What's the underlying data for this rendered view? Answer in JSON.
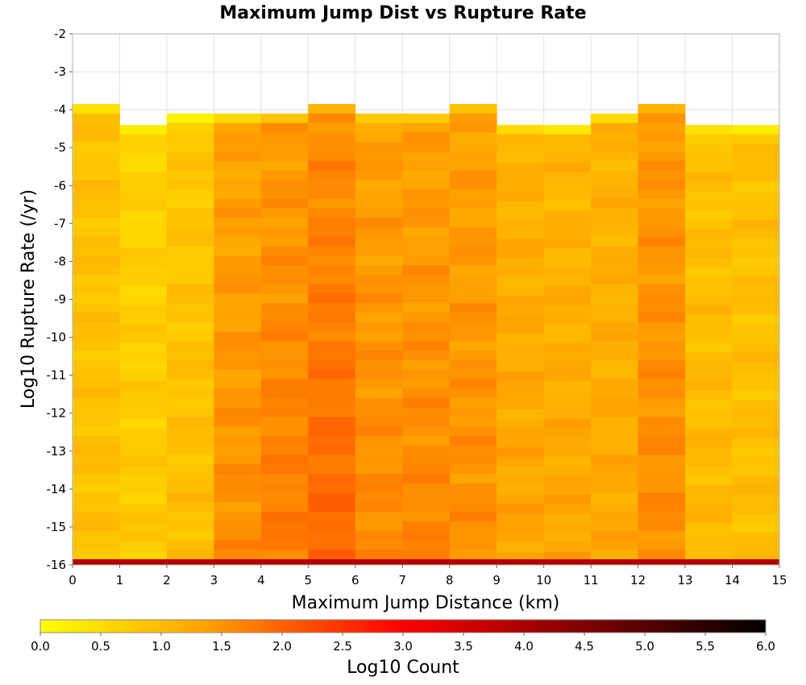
{
  "chart_data": {
    "type": "heatmap",
    "title": "Maximum Jump Dist vs Rupture Rate",
    "xlabel": "Maximum Jump Distance (km)",
    "ylabel": "Log10 Rupture Rate (/yr)",
    "xlim": [
      0,
      15
    ],
    "ylim": [
      -16,
      -2
    ],
    "x_ticks": [
      "0",
      "1",
      "2",
      "3",
      "4",
      "5",
      "6",
      "7",
      "8",
      "9",
      "10",
      "11",
      "12",
      "13",
      "14",
      "15"
    ],
    "y_ticks": [
      "-2",
      "-3",
      "-4",
      "-5",
      "-6",
      "-7",
      "-8",
      "-9",
      "-10",
      "-11",
      "-12",
      "-13",
      "-14",
      "-15",
      "-16"
    ],
    "x_bin_width": 1,
    "y_bin_height": 0.25,
    "grid": true,
    "colorbar": {
      "label": "Log10 Count",
      "range": [
        0,
        6
      ],
      "ticks": [
        "0.0",
        "0.5",
        "1.0",
        "1.5",
        "2.0",
        "2.5",
        "3.0",
        "3.5",
        "4.0",
        "4.5",
        "5.0",
        "5.5",
        "6.0"
      ],
      "colors": [
        "#ffff00",
        "#ffa500",
        "#ff0000",
        "#000000"
      ],
      "color_positions": [
        0,
        0.22,
        0.5,
        1.0
      ]
    },
    "columns": [
      {
        "x_bin": "0-1",
        "top": -3.85,
        "base": 0.9,
        "slope": 0.0
      },
      {
        "x_bin": "1-2",
        "top": -4.4,
        "base": 0.65,
        "slope": 0.012
      },
      {
        "x_bin": "2-3",
        "top": -4.1,
        "base": 0.8,
        "slope": 0.014
      },
      {
        "x_bin": "3-4",
        "top": -4.1,
        "base": 1.3,
        "slope": 0.022
      },
      {
        "x_bin": "4-5",
        "top": -4.1,
        "base": 1.4,
        "slope": 0.03
      },
      {
        "x_bin": "5-6",
        "top": -3.85,
        "base": 1.55,
        "slope": 0.035
      },
      {
        "x_bin": "6-7",
        "top": -4.1,
        "base": 1.35,
        "slope": 0.022
      },
      {
        "x_bin": "7-8",
        "top": -4.1,
        "base": 1.35,
        "slope": 0.025
      },
      {
        "x_bin": "8-9",
        "top": -3.85,
        "base": 1.35,
        "slope": 0.018
      },
      {
        "x_bin": "9-10",
        "top": -4.4,
        "base": 1.1,
        "slope": 0.02
      },
      {
        "x_bin": "10-11",
        "top": -4.4,
        "base": 1.05,
        "slope": 0.022
      },
      {
        "x_bin": "11-12",
        "top": -4.1,
        "base": 1.1,
        "slope": 0.015
      },
      {
        "x_bin": "12-13",
        "top": -3.85,
        "base": 1.45,
        "slope": 0.01
      },
      {
        "x_bin": "13-14",
        "top": -4.4,
        "base": 0.9,
        "slope": 0.012
      },
      {
        "x_bin": "14-15",
        "top": -4.4,
        "base": 0.9,
        "slope": 0.005
      }
    ],
    "bottom_row": {
      "y_range": [
        -16.0,
        -15.85
      ],
      "value": 3.9
    }
  }
}
